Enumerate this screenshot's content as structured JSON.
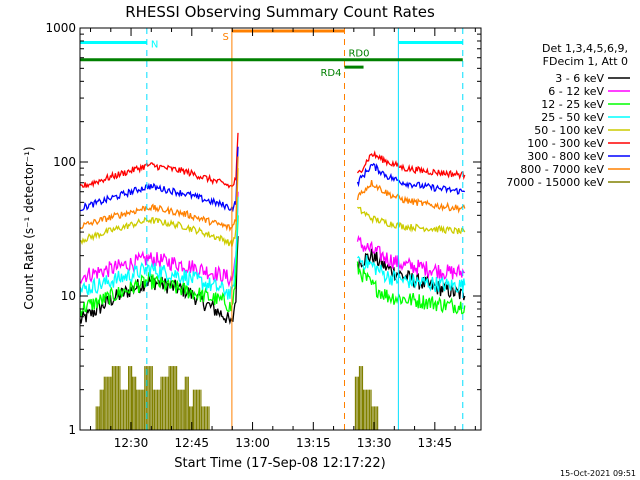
{
  "chart_data": {
    "type": "line",
    "title": "RHESSI Observing Summary Count Rates",
    "xlabel": "Start Time (17-Sep-08 12:17:22)",
    "ylabel": "Count Rate (s⁻¹ detector⁻¹)",
    "y_scale": "log",
    "ylim": [
      1,
      1000
    ],
    "xlim_minutes_after_start": [
      0,
      99
    ],
    "x_ticks": [
      {
        "label": "12:30",
        "minutes_after_start": 12.6
      },
      {
        "label": "12:45",
        "minutes_after_start": 27.6
      },
      {
        "label": "13:00",
        "minutes_after_start": 42.6
      },
      {
        "label": "13:15",
        "minutes_after_start": 57.6
      },
      {
        "label": "13:30",
        "minutes_after_start": 72.6
      },
      {
        "label": "13:45",
        "minutes_after_start": 87.6
      }
    ],
    "y_ticks": [
      "1",
      "10",
      "100",
      "1000"
    ],
    "legend_header": [
      "Det 1,3,4,5,6,9,",
      "FDecim 1, Att 0"
    ],
    "legend_placement": "right",
    "series": [
      {
        "name": "3 - 6 keV",
        "color": "#000000",
        "t": [
          0,
          8,
          17,
          26,
          36,
          37.5,
          38.5,
          39,
          68,
          68.5,
          72,
          76,
          80,
          86,
          91,
          95
        ],
        "v": [
          6.5,
          9.5,
          13,
          11,
          7,
          6,
          10,
          28,
          null,
          18,
          20,
          16,
          14,
          12,
          11,
          10
        ]
      },
      {
        "name": "6 - 12 keV",
        "color": "#ff00ff",
        "t": [
          0,
          8,
          17,
          26,
          36,
          37.5,
          38.5,
          39,
          68,
          68.5,
          72,
          76,
          80,
          86,
          91,
          95
        ],
        "v": [
          14,
          16,
          19,
          17,
          14,
          13,
          20,
          60,
          null,
          25,
          22,
          19,
          17,
          16,
          15,
          15
        ]
      },
      {
        "name": "12 - 25 keV",
        "color": "#00ff00",
        "t": [
          0,
          8,
          17,
          26,
          36,
          37.5,
          38.5,
          39,
          68,
          68.5,
          72,
          76,
          80,
          86,
          91,
          95
        ],
        "v": [
          8,
          10,
          13,
          11,
          9,
          8,
          14,
          40,
          null,
          16,
          12,
          10,
          9.5,
          9,
          8.5,
          8.5
        ]
      },
      {
        "name": "25 - 50 keV",
        "color": "#00ffff",
        "t": [
          0,
          8,
          17,
          26,
          36,
          37.5,
          38.5,
          39,
          68,
          68.5,
          72,
          76,
          80,
          86,
          91,
          95
        ],
        "v": [
          11,
          13,
          16,
          14,
          11,
          10,
          18,
          55,
          null,
          19,
          17,
          14,
          13,
          12.5,
          12,
          12
        ]
      },
      {
        "name": "50 - 100 keV",
        "color": "#cccc00",
        "t": [
          0,
          8,
          17,
          26,
          36,
          37.5,
          38.5,
          39,
          68,
          68.5,
          72,
          76,
          80,
          86,
          91,
          95
        ],
        "v": [
          26,
          31,
          37,
          33,
          26,
          24,
          30,
          90,
          null,
          45,
          38,
          35,
          33,
          32,
          31,
          30
        ]
      },
      {
        "name": "100 - 300 keV",
        "color": "#ff0000",
        "t": [
          0,
          8,
          17,
          26,
          36,
          37.5,
          38.5,
          39,
          68,
          68.5,
          72,
          76,
          80,
          86,
          91,
          95
        ],
        "v": [
          65,
          78,
          95,
          85,
          68,
          65,
          75,
          165,
          null,
          80,
          115,
          100,
          90,
          85,
          82,
          80
        ]
      },
      {
        "name": "300 - 800 keV",
        "color": "#0000ff",
        "t": [
          0,
          8,
          17,
          26,
          36,
          37.5,
          38.5,
          39,
          68,
          68.5,
          72,
          76,
          80,
          86,
          91,
          95
        ],
        "v": [
          45,
          54,
          66,
          58,
          47,
          45,
          50,
          130,
          null,
          70,
          95,
          78,
          70,
          65,
          62,
          60
        ]
      },
      {
        "name": "800 - 7000 keV",
        "color": "#ff8000",
        "t": [
          0,
          8,
          17,
          26,
          36,
          37.5,
          38.5,
          39,
          68,
          68.5,
          72,
          76,
          80,
          86,
          91,
          95
        ],
        "v": [
          33,
          39,
          46,
          41,
          33,
          32,
          38,
          110,
          null,
          55,
          70,
          58,
          52,
          48,
          46,
          45
        ]
      },
      {
        "name": "7000 - 15000 keV",
        "color": "#808000",
        "t": [
          4,
          5,
          6,
          8,
          10,
          12,
          13,
          14,
          16,
          18,
          20,
          22,
          24,
          26,
          27,
          28,
          30,
          32,
          68,
          69,
          70,
          72,
          73.5
        ],
        "v": [
          1.5,
          2,
          2.5,
          3,
          2,
          3,
          2.5,
          2,
          3,
          2,
          2.5,
          3,
          2,
          2.5,
          1.5,
          2,
          1.5,
          1.5,
          2.5,
          3,
          2,
          1.5,
          1.5
        ]
      }
    ],
    "annotations": {
      "boundaries_cyan": [
        {
          "t": 0,
          "style": "solid"
        },
        {
          "t": 16.5,
          "style": "dashed"
        },
        {
          "t": 78.6,
          "style": "solid"
        },
        {
          "t": 94.5,
          "style": "dashed"
        }
      ],
      "boundaries_orange": [
        {
          "t": 37.5,
          "style": "solid"
        },
        {
          "t": 65.3,
          "style": "dashed"
        }
      ],
      "bars": [
        {
          "label": "N",
          "color": "#00ffff",
          "t_start": 0,
          "t_end": 16.5,
          "y": 780,
          "label_side": "right"
        },
        {
          "label": "",
          "color": "#00ffff",
          "t_start": 78.6,
          "t_end": 94.5,
          "y": 780
        },
        {
          "label": "S",
          "color": "#ff8000",
          "t_start": 37.5,
          "t_end": 65.3,
          "y": 950,
          "label_side": "left"
        },
        {
          "label": "",
          "color": "#008000",
          "t_start": 0,
          "t_end": 65.3,
          "y": 580
        },
        {
          "label": "RD0",
          "color": "#008000",
          "t_start": 65.3,
          "t_end": 94.5,
          "y": 580,
          "label_side": "above"
        },
        {
          "label": "RD4",
          "color": "#008000",
          "t_start": 65.3,
          "t_end": 70,
          "y": 510,
          "label_side": "left"
        }
      ]
    }
  },
  "footer": {
    "timestamp": "15-Oct-2021 09:51"
  }
}
